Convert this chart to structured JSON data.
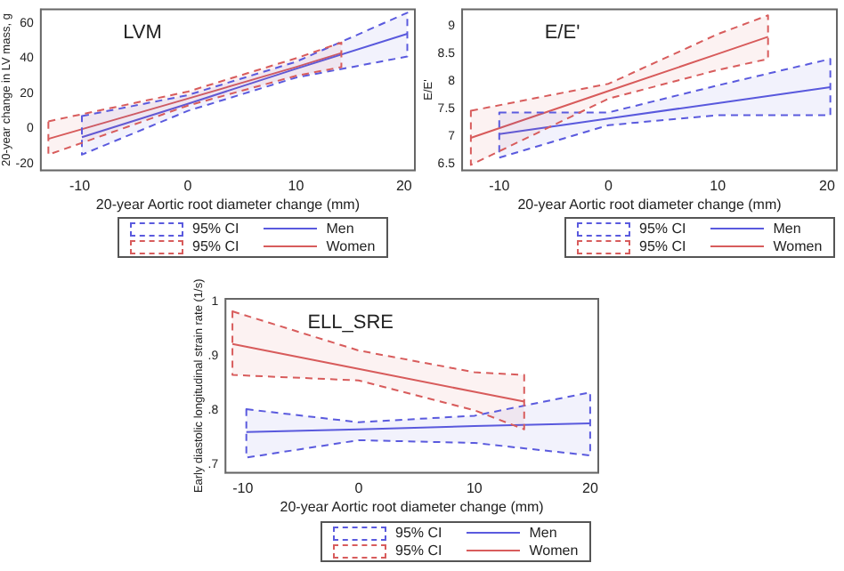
{
  "chart_data": [
    {
      "type": "line",
      "title": "LVM",
      "xlabel": "20-year Aortic root diameter change (mm)",
      "ylabel": "20-year change in LV mass, g",
      "xlim": [
        -13.6,
        21
      ],
      "ylim": [
        -24,
        68
      ],
      "xticks": [
        -10,
        0,
        10,
        20
      ],
      "yticks": [
        -20,
        0,
        20,
        40,
        60
      ],
      "legend": "bottom",
      "annotations": [
        "95% CI",
        "95% CI"
      ],
      "series": [
        {
          "name": "Men",
          "color": "#5a5ade",
          "x": [
            -9.8,
            0,
            10,
            20.3
          ],
          "values": [
            -5,
            14,
            34,
            54
          ],
          "lower": [
            -15,
            10,
            29,
            41
          ],
          "upper": [
            7,
            19,
            38,
            66
          ]
        },
        {
          "name": "Women",
          "color": "#d85c5c",
          "x": [
            -12.9,
            0,
            10,
            14.2
          ],
          "values": [
            -6,
            17,
            35,
            43
          ],
          "lower": [
            -15,
            13,
            30,
            35
          ],
          "upper": [
            4,
            21,
            40,
            49
          ]
        }
      ]
    },
    {
      "type": "line",
      "title": "E/E'",
      "xlabel": "20-year Aortic root diameter change (mm)",
      "ylabel": "E/E'",
      "xlim": [
        -13.4,
        20.9
      ],
      "ylim": [
        6.38,
        9.3
      ],
      "xticks": [
        -10,
        0,
        10,
        20
      ],
      "yticks": [
        6.5,
        7,
        7.5,
        8,
        8.5,
        9
      ],
      "legend": "bottom",
      "annotations": [
        "95% CI",
        "95% CI"
      ],
      "series": [
        {
          "name": "Men",
          "color": "#5a5ade",
          "x": [
            -10,
            0,
            10,
            20.3
          ],
          "values": [
            7.04,
            7.32,
            7.6,
            7.89
          ],
          "lower": [
            6.61,
            7.2,
            7.38,
            7.38
          ],
          "upper": [
            7.43,
            7.43,
            7.92,
            8.4
          ]
        },
        {
          "name": "Women",
          "color": "#d85c5c",
          "x": [
            -12.6,
            0,
            10,
            14.6
          ],
          "values": [
            6.97,
            7.82,
            8.49,
            8.8
          ],
          "lower": [
            6.48,
            7.68,
            8.2,
            8.4
          ],
          "upper": [
            7.46,
            7.95,
            8.85,
            9.19
          ]
        }
      ]
    },
    {
      "type": "line",
      "title": "ELL_SRE",
      "xlabel": "20-year Aortic root diameter change (mm)",
      "ylabel": "Early diastolic longitudinal strain rate (1/s)",
      "xlim": [
        -11.5,
        20.7
      ],
      "ylim": [
        0.685,
        1.005
      ],
      "xticks": [
        -10,
        0,
        10,
        20
      ],
      "yticks": [
        {
          "value": 0.7,
          "label": ".7"
        },
        {
          "value": 0.8,
          "label": ".8"
        },
        {
          "value": 0.9,
          "label": ".9"
        },
        1
      ],
      "legend": "bottom",
      "annotations": [
        "95% CI",
        "95% CI"
      ],
      "series": [
        {
          "name": "Men",
          "color": "#5a5ade",
          "x": [
            -9.7,
            0,
            10,
            20
          ],
          "values": [
            0.76,
            0.765,
            0.771,
            0.776
          ],
          "lower": [
            0.713,
            0.745,
            0.74,
            0.717
          ],
          "upper": [
            0.802,
            0.778,
            0.79,
            0.833
          ]
        },
        {
          "name": "Women",
          "color": "#d85c5c",
          "x": [
            -10.9,
            0,
            10,
            14.3
          ],
          "values": [
            0.922,
            0.876,
            0.834,
            0.816
          ],
          "lower": [
            0.865,
            0.855,
            0.8,
            0.765
          ],
          "upper": [
            0.982,
            0.91,
            0.87,
            0.865
          ]
        }
      ]
    }
  ]
}
